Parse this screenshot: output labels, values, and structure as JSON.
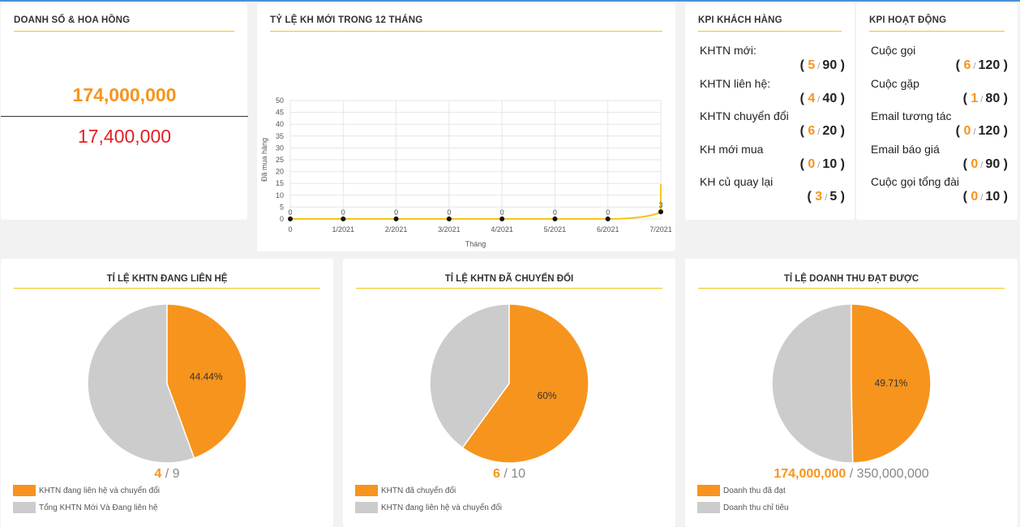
{
  "colors": {
    "accent": "#f7941d",
    "gray": "#cccccc",
    "red": "#e31e24",
    "yellow": "#f5c518"
  },
  "revenue": {
    "title": "DOANH SỐ & HOA HỒNG",
    "sales": "174,000,000",
    "commission": "17,400,000"
  },
  "new_customer_chart": {
    "title": "TỶ LỆ KH MỚI TRONG 12 THÁNG",
    "chart_data": {
      "type": "line",
      "title": "TỶ LỆ KH MỚI TRONG 12 THÁNG",
      "xlabel": "Tháng",
      "ylabel": "Đã mua hàng",
      "categories": [
        "0",
        "1/2021",
        "2/2021",
        "3/2021",
        "4/2021",
        "5/2021",
        "6/2021",
        "7/2021"
      ],
      "values": [
        0,
        0,
        0,
        0,
        0,
        0,
        0,
        3
      ],
      "data_labels": [
        "0",
        "0",
        "0",
        "0",
        "0",
        "0",
        "0",
        "3"
      ],
      "y_ticks": [
        "0",
        "5",
        "10",
        "15",
        "20",
        "25",
        "30",
        "35",
        "40",
        "45",
        "50"
      ],
      "ylim": [
        0,
        50
      ],
      "grid": true
    }
  },
  "kpi_customers": {
    "title": "KPI KHÁCH HÀNG",
    "items": [
      {
        "label": "KHTN mới:",
        "done": "5",
        "target": "90"
      },
      {
        "label": "KHTN liên hệ:",
        "done": "4",
        "target": "40"
      },
      {
        "label": "KHTN chuyển đổi",
        "done": "6",
        "target": "20"
      },
      {
        "label": "KH mới mua",
        "done": "0",
        "target": "10"
      },
      {
        "label": "KH củ quay lại",
        "done": "3",
        "target": "5"
      }
    ]
  },
  "kpi_activity": {
    "title": "KPI HOẠT ĐỘNG",
    "items": [
      {
        "label": "Cuộc gọi",
        "done": "6",
        "target": "120"
      },
      {
        "label": "Cuộc gặp",
        "done": "1",
        "target": "80"
      },
      {
        "label": "Email tương tác",
        "done": "0",
        "target": "120"
      },
      {
        "label": "Email báo giá",
        "done": "0",
        "target": "90"
      },
      {
        "label": "Cuộc gọi tổng đài",
        "done": "0",
        "target": "10"
      }
    ]
  },
  "pies": [
    {
      "title": "TỈ LỆ KHTN ĐANG LIÊN HỆ",
      "percent_label": "44.44%",
      "fraction": 0.4444,
      "summary_done": "4",
      "summary_total": "9",
      "legend": [
        "KHTN đang liên hệ và chuyển đổi",
        "Tổng KHTN Mới Và Đang liên hệ"
      ]
    },
    {
      "title": "TỈ LỆ KHTN ĐÃ CHUYỂN ĐỔI",
      "percent_label": "60%",
      "fraction": 0.6,
      "summary_done": "6",
      "summary_total": "10",
      "legend": [
        "KHTN đã chuyển đổi",
        "KHTN đang liên hệ và chuyển đổi"
      ]
    },
    {
      "title": "TỈ LỆ DOANH THU ĐẠT ĐƯỢC",
      "percent_label": "49.71%",
      "fraction": 0.4971,
      "summary_done": "174,000,000",
      "summary_total": "350,000,000",
      "legend": [
        "Doanh thu đã đạt",
        "Doanh thu chỉ tiêu"
      ]
    }
  ],
  "chart_data": [
    {
      "type": "line",
      "title": "TỶ LỆ KH MỚI TRONG 12 THÁNG",
      "xlabel": "Tháng",
      "ylabel": "Đã mua hàng",
      "categories": [
        "0",
        "1/2021",
        "2/2021",
        "3/2021",
        "4/2021",
        "5/2021",
        "6/2021",
        "7/2021"
      ],
      "values": [
        0,
        0,
        0,
        0,
        0,
        0,
        0,
        3
      ],
      "ylim": [
        0,
        50
      ]
    },
    {
      "type": "pie",
      "title": "TỈ LỆ KHTN ĐANG LIÊN HỆ",
      "categories": [
        "KHTN đang liên hệ và chuyển đổi",
        "Tổng KHTN Mới Và Đang liên hệ"
      ],
      "values": [
        44.44,
        55.56
      ]
    },
    {
      "type": "pie",
      "title": "TỈ LỆ KHTN ĐÃ CHUYỂN ĐỔI",
      "categories": [
        "KHTN đã chuyển đổi",
        "KHTN đang liên hệ và chuyển đổi"
      ],
      "values": [
        60,
        40
      ]
    },
    {
      "type": "pie",
      "title": "TỈ LỆ DOANH THU ĐẠT ĐƯỢC",
      "categories": [
        "Doanh thu đã đạt",
        "Doanh thu chỉ tiêu"
      ],
      "values": [
        49.71,
        50.29
      ]
    }
  ]
}
